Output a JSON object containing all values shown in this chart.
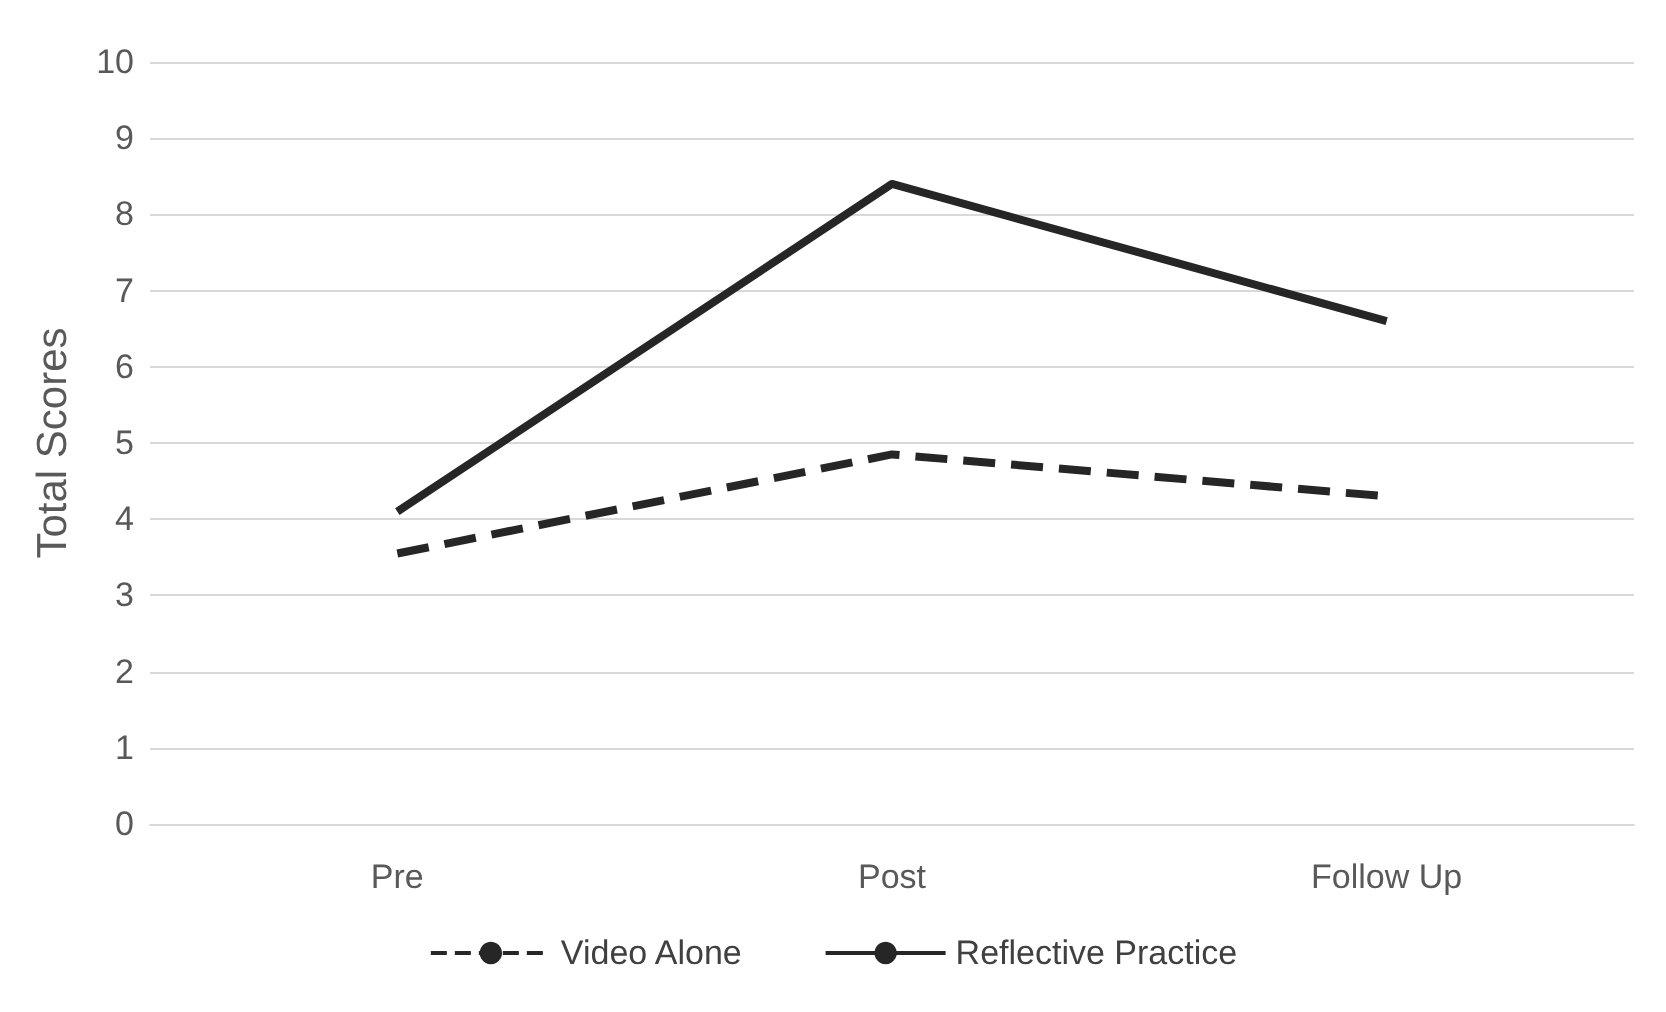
{
  "chart_data": {
    "type": "line",
    "ylabel": "Total Scores",
    "categories": [
      "Pre",
      "Post",
      "Follow Up"
    ],
    "series": [
      {
        "name": "Video Alone",
        "color": "#262626",
        "line_style": "dashed",
        "values": [
          3.55,
          4.85,
          4.3
        ]
      },
      {
        "name": "Reflective Practice",
        "color": "#262626",
        "line_style": "solid",
        "values": [
          4.1,
          8.4,
          6.6
        ]
      }
    ],
    "ylim": [
      0,
      10
    ],
    "yticks": [
      0,
      1,
      2,
      3,
      4,
      5,
      6,
      7,
      8,
      9,
      10
    ],
    "grid": "y",
    "legend": "bottom",
    "marker": "none"
  }
}
